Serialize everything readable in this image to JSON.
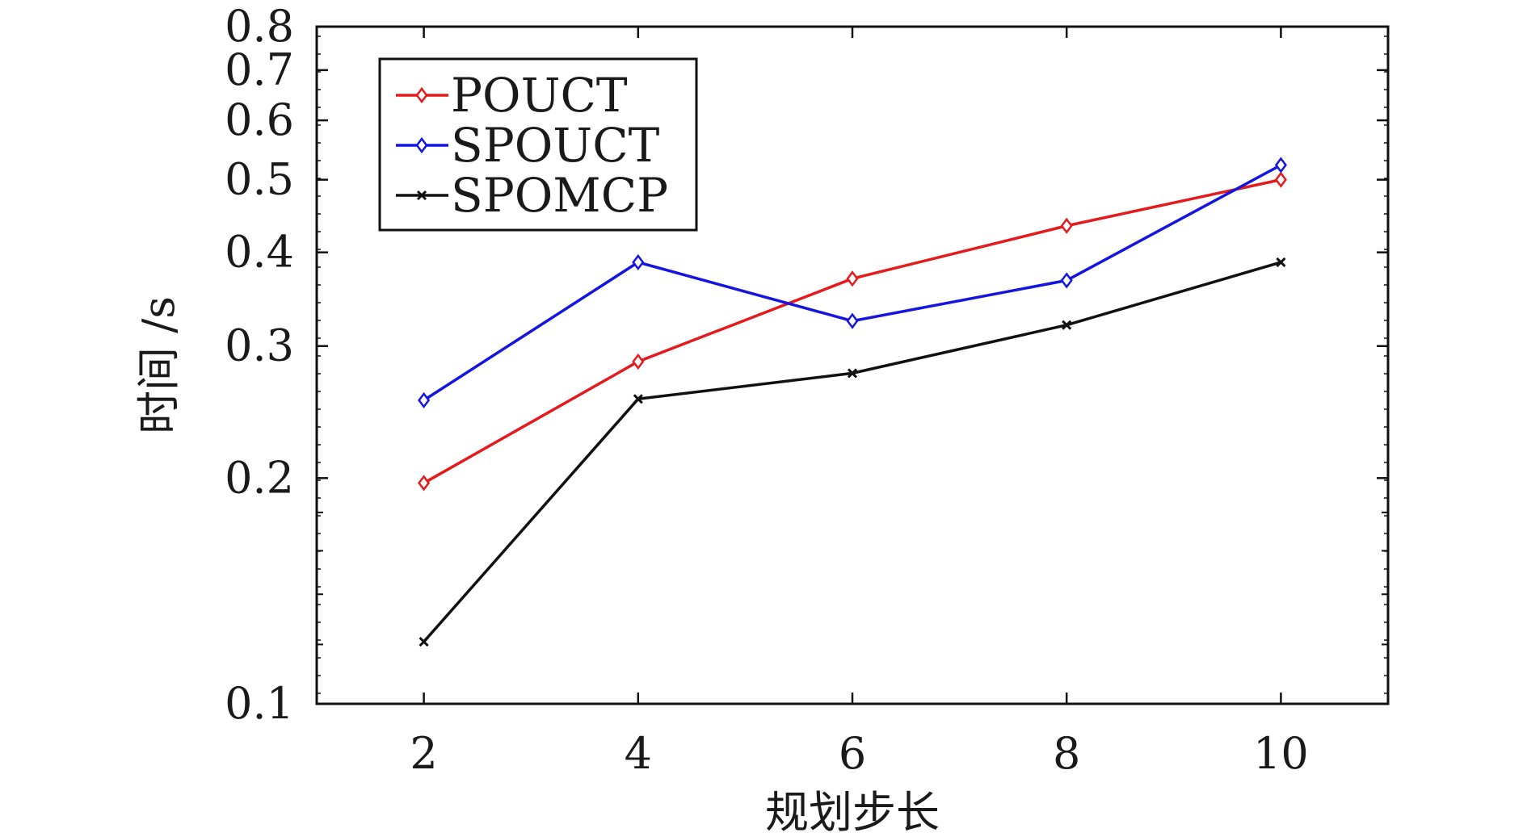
{
  "chart_data": {
    "type": "line",
    "xlabel": "规划步长",
    "ylabel": "时间 /s",
    "x": [
      2,
      4,
      6,
      8,
      10
    ],
    "xlim": [
      1,
      11
    ],
    "xticks": [
      "2",
      "4",
      "6",
      "8",
      "10"
    ],
    "ylim": [
      0.1,
      0.8
    ],
    "yscale": "log",
    "yticks": [
      {
        "value": 0.1,
        "label": "0.1"
      },
      {
        "value": 0.2,
        "label": "0.2"
      },
      {
        "value": 0.3,
        "label": "0.3"
      },
      {
        "value": 0.4,
        "label": "0.4"
      },
      {
        "value": 0.5,
        "label": "0.5"
      },
      {
        "value": 0.6,
        "label": "0.6"
      },
      {
        "value": 0.7,
        "label": "0.7"
      },
      {
        "value": 0.8,
        "label": "0.8"
      }
    ],
    "grid": false,
    "legend_position": "top-left",
    "series": [
      {
        "name": "POUCT",
        "color": "#e41a1c",
        "marker": "diamond",
        "values": [
          0.197,
          0.286,
          0.369,
          0.434,
          0.5
        ]
      },
      {
        "name": "SPOUCT",
        "color": "#1515e0",
        "marker": "diamond",
        "values": [
          0.254,
          0.388,
          0.324,
          0.367,
          0.523
        ]
      },
      {
        "name": "SPOMCP",
        "color": "#111111",
        "marker": "x",
        "values": [
          0.121,
          0.255,
          0.276,
          0.32,
          0.388
        ]
      }
    ]
  }
}
